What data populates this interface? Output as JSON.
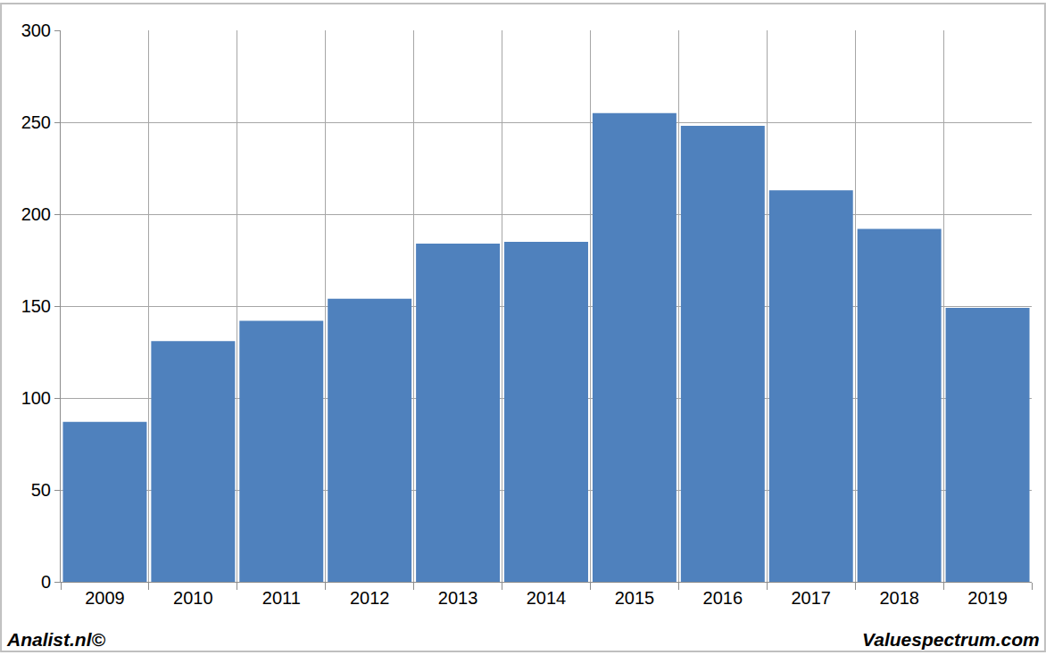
{
  "chart_data": {
    "type": "bar",
    "categories": [
      "2009",
      "2010",
      "2011",
      "2012",
      "2013",
      "2014",
      "2015",
      "2016",
      "2017",
      "2018",
      "2019"
    ],
    "values": [
      87,
      131,
      142,
      154,
      184,
      185,
      255,
      248,
      213,
      192,
      149
    ],
    "color": "#4f81bd",
    "ylim": [
      0,
      300
    ],
    "yticks": [
      0,
      50,
      100,
      150,
      200,
      250,
      300
    ],
    "grid": true,
    "annotations": [
      {
        "text": "Analist.nl©"
      },
      {
        "text": "Valuespectrum.com"
      }
    ]
  }
}
